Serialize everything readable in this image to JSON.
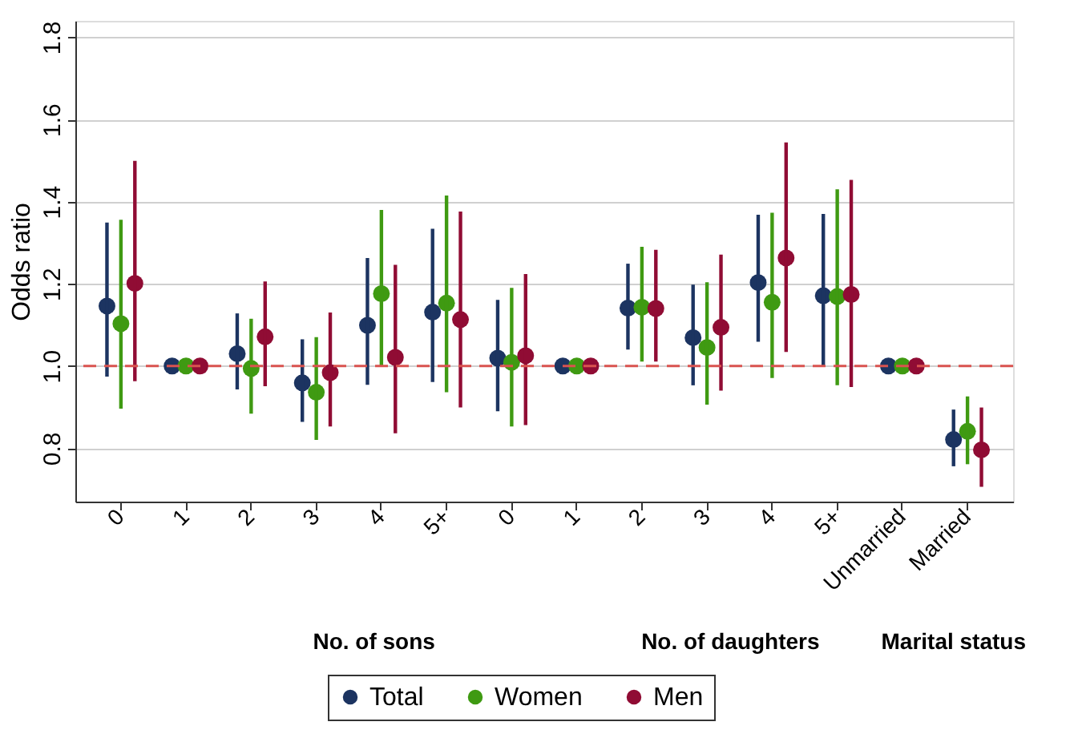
{
  "chart_data": {
    "type": "scatter",
    "ylabel": "Odds ratio",
    "categories": [
      "0",
      "1",
      "2",
      "3",
      "4",
      "5+",
      "0",
      "1",
      "2",
      "3",
      "4",
      "5+",
      "Unmarried",
      "Married"
    ],
    "series": [
      {
        "name": "Total",
        "color": "#1c3461",
        "values": [
          1.146,
          1.0,
          1.03,
          0.959,
          1.099,
          1.131,
          1.019,
          1.0,
          1.141,
          1.069,
          1.203,
          1.171,
          1.0,
          0.821
        ],
        "errors": [
          [
            0.974,
            1.349
          ],
          null,
          [
            0.943,
            1.128
          ],
          [
            0.864,
            1.065
          ],
          [
            0.954,
            1.263
          ],
          [
            0.961,
            1.334
          ],
          [
            0.89,
            1.161
          ],
          null,
          [
            1.04,
            1.249
          ],
          [
            0.953,
            1.198
          ],
          [
            1.059,
            1.368
          ],
          [
            1.0,
            1.37
          ],
          null,
          [
            0.756,
            0.894
          ]
        ]
      },
      {
        "name": "Women",
        "color": "#3f9a12",
        "values": [
          1.103,
          1.0,
          0.994,
          0.936,
          1.176,
          1.153,
          1.009,
          1.0,
          1.143,
          1.045,
          1.155,
          1.169,
          1.0,
          0.841
        ],
        "errors": [
          [
            0.896,
            1.356
          ],
          null,
          [
            0.884,
            1.115
          ],
          [
            0.82,
            1.07
          ],
          [
            1.0,
            1.38
          ],
          [
            0.936,
            1.415
          ],
          [
            0.853,
            1.19
          ],
          null,
          [
            1.011,
            1.29
          ],
          [
            0.906,
            1.204
          ],
          [
            0.971,
            1.373
          ],
          [
            0.953,
            1.43
          ],
          null,
          [
            0.761,
            0.926
          ]
        ]
      },
      {
        "name": "Men",
        "color": "#900c34",
        "values": [
          1.201,
          1.0,
          1.071,
          0.984,
          1.021,
          1.113,
          1.025,
          1.0,
          1.14,
          1.094,
          1.263,
          1.174,
          1.0,
          0.796
        ],
        "errors": [
          [
            0.963,
            1.499
          ],
          null,
          [
            0.951,
            1.206
          ],
          [
            0.853,
            1.13
          ],
          [
            0.836,
            1.246
          ],
          [
            0.899,
            1.376
          ],
          [
            0.856,
            1.224
          ],
          null,
          [
            1.011,
            1.283
          ],
          [
            0.94,
            1.271
          ],
          [
            1.034,
            1.544
          ],
          [
            0.949,
            1.453
          ],
          null,
          [
            0.706,
            0.899
          ]
        ]
      }
    ],
    "ylim": [
      0.67,
      1.84
    ],
    "yticks": [
      0.8,
      {
        "value": 1.0,
        "label": "1.0"
      },
      1.2,
      1.4,
      1.6,
      1.8
    ],
    "ref_lines": [
      {
        "axis": "y",
        "value": 1.0,
        "color": "#d9534f",
        "line_style": "dashed"
      }
    ],
    "annotations": [
      "No. of sons",
      "No. of daughters",
      "Marital status"
    ],
    "grid": "y",
    "legend": "bottom",
    "marker": "circle"
  }
}
